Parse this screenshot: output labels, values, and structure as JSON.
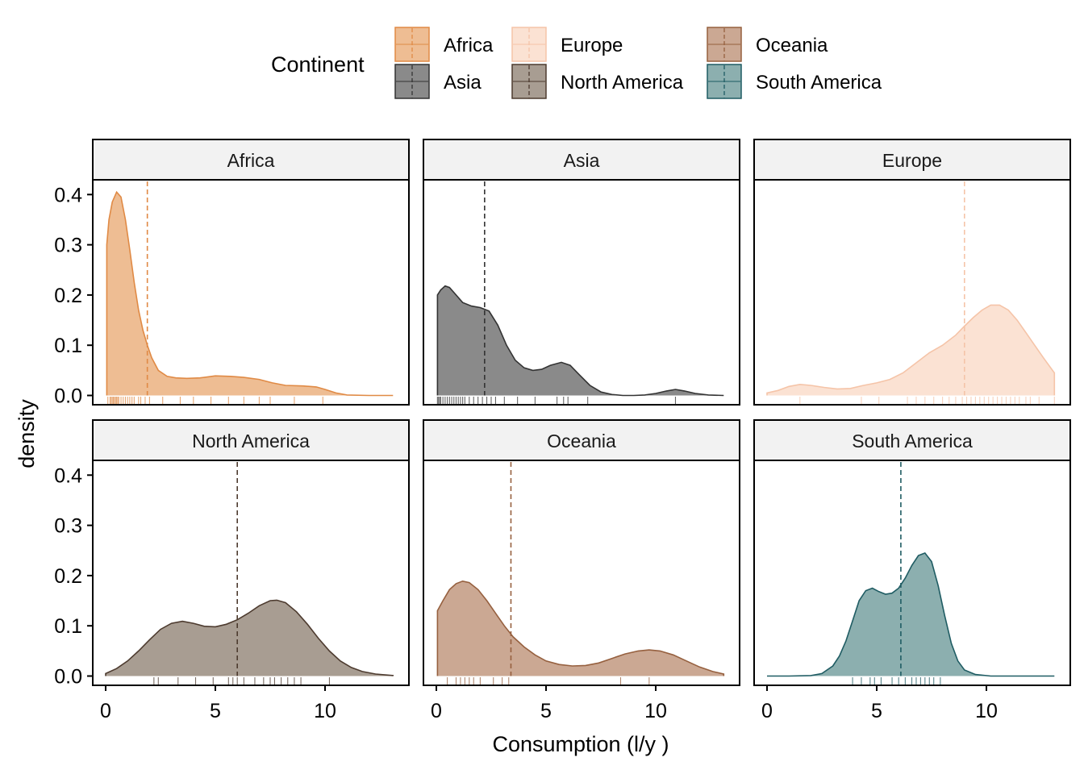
{
  "chart_data": {
    "type": "area",
    "subtype": "faceted density",
    "xlabel": "Consumption (l/y )",
    "ylabel": "density",
    "xlim": [
      0,
      13.2
    ],
    "ylim": [
      -0.02,
      0.43
    ],
    "x_ticks": [
      0,
      5,
      10
    ],
    "y_ticks": [
      0.0,
      0.1,
      0.2,
      0.3,
      0.4
    ],
    "x_tick_labels": [
      "0",
      "5",
      "10"
    ],
    "y_tick_labels": [
      "0.0",
      "0.1",
      "0.2",
      "0.3",
      "0.4"
    ],
    "legend": {
      "title": "Continent",
      "position": "top"
    },
    "facets": [
      {
        "name": "Africa",
        "fill": "#eebd93",
        "line": "#e08a45",
        "mean": 1.9,
        "density": [
          [
            0.05,
            0.3
          ],
          [
            0.15,
            0.35
          ],
          [
            0.3,
            0.385
          ],
          [
            0.5,
            0.405
          ],
          [
            0.7,
            0.395
          ],
          [
            0.9,
            0.35
          ],
          [
            1.1,
            0.29
          ],
          [
            1.3,
            0.225
          ],
          [
            1.5,
            0.17
          ],
          [
            1.7,
            0.13
          ],
          [
            1.9,
            0.1
          ],
          [
            2.1,
            0.075
          ],
          [
            2.4,
            0.05
          ],
          [
            2.8,
            0.038
          ],
          [
            3.2,
            0.035
          ],
          [
            3.7,
            0.034
          ],
          [
            4.3,
            0.035
          ],
          [
            5.0,
            0.039
          ],
          [
            5.7,
            0.038
          ],
          [
            6.3,
            0.036
          ],
          [
            7.0,
            0.032
          ],
          [
            7.6,
            0.025
          ],
          [
            8.2,
            0.02
          ],
          [
            9.0,
            0.019
          ],
          [
            9.6,
            0.017
          ],
          [
            10.0,
            0.012
          ],
          [
            10.5,
            0.005
          ],
          [
            11.0,
            0.001
          ],
          [
            12.0,
            0.0
          ],
          [
            13.1,
            0.0
          ]
        ],
        "rug": [
          0.1,
          0.2,
          0.25,
          0.3,
          0.35,
          0.4,
          0.45,
          0.5,
          0.55,
          0.6,
          0.7,
          0.8,
          0.9,
          1.0,
          1.1,
          1.2,
          1.3,
          1.5,
          1.6,
          1.8,
          2.0,
          2.6,
          3.4,
          4.0,
          4.8,
          5.6,
          6.3,
          7.0,
          7.5,
          8.6,
          9.9
        ]
      },
      {
        "name": "Asia",
        "fill": "#8a8a8a",
        "line": "#333333",
        "mean": 2.2,
        "density": [
          [
            0.05,
            0.2
          ],
          [
            0.2,
            0.21
          ],
          [
            0.4,
            0.218
          ],
          [
            0.6,
            0.215
          ],
          [
            0.9,
            0.2
          ],
          [
            1.2,
            0.185
          ],
          [
            1.6,
            0.178
          ],
          [
            2.0,
            0.175
          ],
          [
            2.4,
            0.168
          ],
          [
            2.8,
            0.14
          ],
          [
            3.2,
            0.1
          ],
          [
            3.6,
            0.07
          ],
          [
            4.0,
            0.055
          ],
          [
            4.4,
            0.05
          ],
          [
            4.8,
            0.052
          ],
          [
            5.2,
            0.06
          ],
          [
            5.7,
            0.066
          ],
          [
            6.1,
            0.06
          ],
          [
            6.5,
            0.042
          ],
          [
            7.0,
            0.02
          ],
          [
            7.5,
            0.007
          ],
          [
            8.0,
            0.002
          ],
          [
            8.5,
            0.0
          ],
          [
            9.0,
            0.0
          ],
          [
            9.5,
            0.001
          ],
          [
            10.0,
            0.004
          ],
          [
            10.5,
            0.009
          ],
          [
            10.9,
            0.012
          ],
          [
            11.3,
            0.009
          ],
          [
            11.8,
            0.004
          ],
          [
            12.4,
            0.001
          ],
          [
            13.1,
            0.0
          ]
        ],
        "rug": [
          0.05,
          0.1,
          0.15,
          0.2,
          0.3,
          0.4,
          0.5,
          0.6,
          0.7,
          0.8,
          0.9,
          1.0,
          1.1,
          1.2,
          1.3,
          1.5,
          1.7,
          1.9,
          2.1,
          2.3,
          2.5,
          2.7,
          3.1,
          3.7,
          4.5,
          5.5,
          5.8,
          6.0,
          6.9,
          10.9
        ]
      },
      {
        "name": "Europe",
        "fill": "#fbe2d3",
        "line": "#f5c4a8",
        "mean": 9.0,
        "density": [
          [
            0.0,
            0.005
          ],
          [
            0.5,
            0.01
          ],
          [
            1.0,
            0.018
          ],
          [
            1.5,
            0.022
          ],
          [
            2.0,
            0.02
          ],
          [
            2.6,
            0.016
          ],
          [
            3.2,
            0.013
          ],
          [
            3.8,
            0.014
          ],
          [
            4.4,
            0.02
          ],
          [
            5.0,
            0.025
          ],
          [
            5.6,
            0.032
          ],
          [
            6.2,
            0.045
          ],
          [
            6.8,
            0.065
          ],
          [
            7.4,
            0.085
          ],
          [
            8.0,
            0.1
          ],
          [
            8.6,
            0.12
          ],
          [
            9.0,
            0.138
          ],
          [
            9.4,
            0.155
          ],
          [
            9.8,
            0.17
          ],
          [
            10.2,
            0.18
          ],
          [
            10.6,
            0.18
          ],
          [
            11.0,
            0.17
          ],
          [
            11.4,
            0.15
          ],
          [
            11.8,
            0.125
          ],
          [
            12.2,
            0.1
          ],
          [
            12.6,
            0.075
          ],
          [
            13.1,
            0.045
          ]
        ],
        "rug": [
          1.5,
          4.3,
          5.1,
          6.4,
          6.8,
          7.2,
          7.6,
          8.0,
          8.3,
          8.6,
          8.9,
          9.1,
          9.3,
          9.5,
          9.7,
          9.9,
          10.1,
          10.3,
          10.5,
          10.7,
          10.9,
          11.1,
          11.3,
          11.5,
          11.8,
          12.0,
          12.4,
          13.1
        ]
      },
      {
        "name": "North America",
        "fill": "#a89d92",
        "line": "#4d3b2f",
        "mean": 6.0,
        "density": [
          [
            0.0,
            0.005
          ],
          [
            0.5,
            0.015
          ],
          [
            1.0,
            0.03
          ],
          [
            1.5,
            0.05
          ],
          [
            2.0,
            0.072
          ],
          [
            2.5,
            0.093
          ],
          [
            3.0,
            0.105
          ],
          [
            3.5,
            0.109
          ],
          [
            4.0,
            0.105
          ],
          [
            4.5,
            0.099
          ],
          [
            5.0,
            0.098
          ],
          [
            5.5,
            0.103
          ],
          [
            6.0,
            0.112
          ],
          [
            6.5,
            0.125
          ],
          [
            7.0,
            0.14
          ],
          [
            7.5,
            0.15
          ],
          [
            7.8,
            0.151
          ],
          [
            8.2,
            0.146
          ],
          [
            8.7,
            0.128
          ],
          [
            9.2,
            0.103
          ],
          [
            9.7,
            0.075
          ],
          [
            10.2,
            0.05
          ],
          [
            10.7,
            0.03
          ],
          [
            11.2,
            0.017
          ],
          [
            11.7,
            0.009
          ],
          [
            12.3,
            0.004
          ],
          [
            13.1,
            0.001
          ]
        ],
        "rug": [
          2.2,
          2.4,
          3.3,
          4.1,
          4.9,
          5.6,
          5.8,
          6.0,
          6.3,
          6.8,
          7.2,
          7.5,
          7.7,
          8.0,
          8.3,
          8.6,
          8.9,
          10.2
        ]
      },
      {
        "name": "Oceania",
        "fill": "#cba893",
        "line": "#96603f",
        "mean": 3.4,
        "density": [
          [
            0.05,
            0.13
          ],
          [
            0.3,
            0.15
          ],
          [
            0.6,
            0.172
          ],
          [
            0.9,
            0.184
          ],
          [
            1.2,
            0.189
          ],
          [
            1.5,
            0.186
          ],
          [
            1.9,
            0.172
          ],
          [
            2.3,
            0.15
          ],
          [
            2.7,
            0.125
          ],
          [
            3.1,
            0.1
          ],
          [
            3.5,
            0.078
          ],
          [
            4.0,
            0.058
          ],
          [
            4.5,
            0.042
          ],
          [
            5.0,
            0.03
          ],
          [
            5.6,
            0.023
          ],
          [
            6.2,
            0.02
          ],
          [
            6.8,
            0.021
          ],
          [
            7.4,
            0.026
          ],
          [
            8.0,
            0.035
          ],
          [
            8.6,
            0.044
          ],
          [
            9.2,
            0.05
          ],
          [
            9.7,
            0.052
          ],
          [
            10.2,
            0.05
          ],
          [
            10.8,
            0.042
          ],
          [
            11.4,
            0.03
          ],
          [
            12.0,
            0.018
          ],
          [
            12.6,
            0.009
          ],
          [
            13.1,
            0.004
          ]
        ],
        "rug": [
          0.5,
          0.9,
          1.1,
          1.3,
          1.5,
          1.7,
          2.0,
          2.6,
          3.0,
          3.3,
          8.4,
          9.7
        ]
      },
      {
        "name": "South America",
        "fill": "#8cafaf",
        "line": "#1f5c63",
        "mean": 6.1,
        "density": [
          [
            0.0,
            0.0
          ],
          [
            1.0,
            0.0
          ],
          [
            2.0,
            0.001
          ],
          [
            2.5,
            0.005
          ],
          [
            3.0,
            0.02
          ],
          [
            3.3,
            0.04
          ],
          [
            3.6,
            0.07
          ],
          [
            3.9,
            0.11
          ],
          [
            4.2,
            0.15
          ],
          [
            4.5,
            0.17
          ],
          [
            4.8,
            0.175
          ],
          [
            5.1,
            0.168
          ],
          [
            5.4,
            0.163
          ],
          [
            5.7,
            0.165
          ],
          [
            6.0,
            0.175
          ],
          [
            6.3,
            0.195
          ],
          [
            6.6,
            0.22
          ],
          [
            6.9,
            0.24
          ],
          [
            7.2,
            0.245
          ],
          [
            7.5,
            0.228
          ],
          [
            7.8,
            0.18
          ],
          [
            8.1,
            0.12
          ],
          [
            8.4,
            0.065
          ],
          [
            8.7,
            0.03
          ],
          [
            9.0,
            0.012
          ],
          [
            9.5,
            0.003
          ],
          [
            10.2,
            0.0
          ],
          [
            13.1,
            0.0
          ]
        ],
        "rug": [
          3.9,
          4.3,
          4.7,
          4.9,
          5.2,
          5.7,
          6.0,
          6.3,
          6.6,
          6.8,
          7.0,
          7.2,
          7.4,
          7.6,
          7.9
        ]
      }
    ]
  }
}
